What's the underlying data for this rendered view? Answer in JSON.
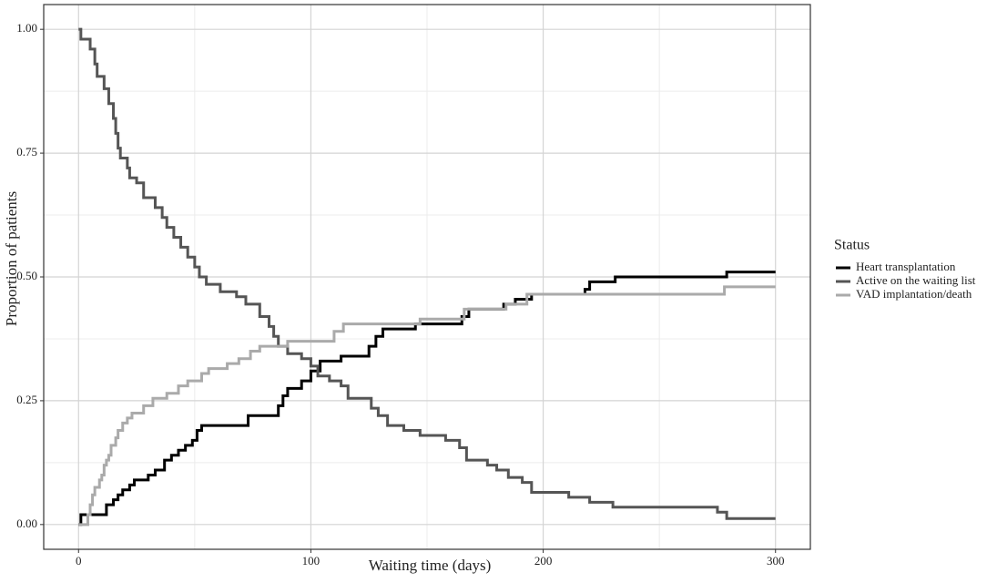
{
  "chart_data": {
    "type": "step",
    "x_label": "Waiting time (days)",
    "y_label": "Proportion of patients",
    "xlim": [
      -15,
      315
    ],
    "ylim": [
      -0.05,
      1.05
    ],
    "xticks": [
      0,
      100,
      200,
      300
    ],
    "yticks": [
      {
        "value": 0,
        "label": "0.00"
      },
      {
        "value": 0.25,
        "label": "0.25"
      },
      {
        "value": 0.5,
        "label": "0.50"
      },
      {
        "value": 0.75,
        "label": "0.75"
      },
      {
        "value": 1,
        "label": "1.00"
      }
    ],
    "x_minor_ticks": [
      50,
      150,
      250
    ],
    "y_minor_ticks": [
      0.125,
      0.375,
      0.625,
      0.875
    ],
    "grid": true,
    "legend_title": "Status",
    "legend_position": "right",
    "series": [
      {
        "name": "Heart transplantation",
        "color": "#000000",
        "x": [
          0,
          1,
          12,
          15,
          17,
          19,
          22,
          24,
          30,
          33,
          37,
          40,
          43,
          46,
          49,
          51,
          53,
          73,
          86,
          88,
          90,
          96,
          100,
          104,
          113,
          125,
          128,
          131,
          145,
          165,
          168,
          183,
          188,
          195,
          218,
          220,
          231,
          279,
          300
        ],
        "values": [
          0,
          0.02,
          0.04,
          0.05,
          0.06,
          0.07,
          0.08,
          0.09,
          0.1,
          0.11,
          0.13,
          0.14,
          0.15,
          0.16,
          0.17,
          0.19,
          0.2,
          0.22,
          0.24,
          0.26,
          0.275,
          0.29,
          0.31,
          0.33,
          0.34,
          0.36,
          0.38,
          0.395,
          0.405,
          0.42,
          0.435,
          0.445,
          0.455,
          0.465,
          0.475,
          0.49,
          0.5,
          0.51,
          0.51
        ]
      },
      {
        "name": "Active on the waiting list",
        "color": "#555555",
        "x": [
          0,
          1,
          5,
          7,
          8,
          11,
          13,
          15,
          16,
          17,
          18,
          21,
          22,
          25,
          28,
          33,
          36,
          38,
          41,
          44,
          47,
          50,
          52,
          55,
          61,
          68,
          72,
          78,
          82,
          84,
          86,
          90,
          96,
          100,
          103,
          108,
          113,
          116,
          126,
          129,
          133,
          140,
          147,
          158,
          164,
          167,
          176,
          180,
          185,
          191,
          195,
          211,
          220,
          230,
          275,
          279,
          300
        ],
        "values": [
          1,
          0.98,
          0.96,
          0.93,
          0.905,
          0.88,
          0.85,
          0.82,
          0.79,
          0.76,
          0.74,
          0.72,
          0.7,
          0.69,
          0.66,
          0.64,
          0.62,
          0.6,
          0.58,
          0.56,
          0.54,
          0.52,
          0.5,
          0.485,
          0.47,
          0.46,
          0.445,
          0.42,
          0.4,
          0.38,
          0.36,
          0.345,
          0.335,
          0.32,
          0.3,
          0.29,
          0.28,
          0.255,
          0.235,
          0.22,
          0.2,
          0.19,
          0.18,
          0.17,
          0.155,
          0.13,
          0.12,
          0.11,
          0.095,
          0.085,
          0.065,
          0.055,
          0.045,
          0.035,
          0.025,
          0.012,
          0.012
        ]
      },
      {
        "name": "VAD implantation/death",
        "color": "#aaaaaa",
        "x": [
          0,
          4,
          5,
          6,
          7,
          9,
          10,
          11,
          12,
          13,
          14,
          16,
          17,
          19,
          21,
          23,
          28,
          32,
          38,
          43,
          47,
          53,
          56,
          64,
          69,
          74,
          78,
          90,
          110,
          114,
          147,
          166,
          184,
          193,
          278,
          300
        ],
        "values": [
          0,
          0.02,
          0.04,
          0.06,
          0.075,
          0.09,
          0.1,
          0.12,
          0.13,
          0.14,
          0.16,
          0.175,
          0.19,
          0.205,
          0.215,
          0.225,
          0.24,
          0.255,
          0.265,
          0.28,
          0.29,
          0.305,
          0.315,
          0.325,
          0.335,
          0.35,
          0.36,
          0.37,
          0.39,
          0.405,
          0.415,
          0.435,
          0.445,
          0.465,
          0.48,
          0.48
        ]
      }
    ]
  }
}
